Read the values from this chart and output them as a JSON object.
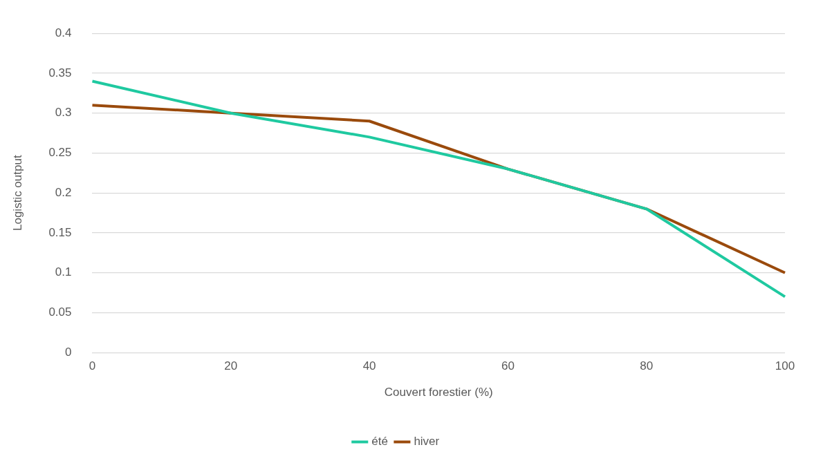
{
  "chart_data": {
    "type": "line",
    "xlabel": "Couvert forestier (%)",
    "ylabel": "Logistic output",
    "categories": [
      "0",
      "20",
      "40",
      "60",
      "80",
      "100"
    ],
    "series": [
      {
        "name": "été",
        "color": "#1fc9a0",
        "values": [
          0.34,
          0.3,
          0.27,
          0.23,
          0.18,
          0.07
        ]
      },
      {
        "name": "hiver",
        "color": "#9a4a0c",
        "values": [
          0.31,
          0.3,
          0.29,
          0.23,
          0.18,
          0.1
        ]
      }
    ],
    "ylim": [
      0,
      0.4
    ],
    "yticks": [
      0,
      0.05,
      0.1,
      0.15,
      0.2,
      0.25,
      0.3,
      0.35,
      0.4
    ],
    "grid": "y",
    "legend": "bottom",
    "marker": "none",
    "line_style": "solid"
  }
}
